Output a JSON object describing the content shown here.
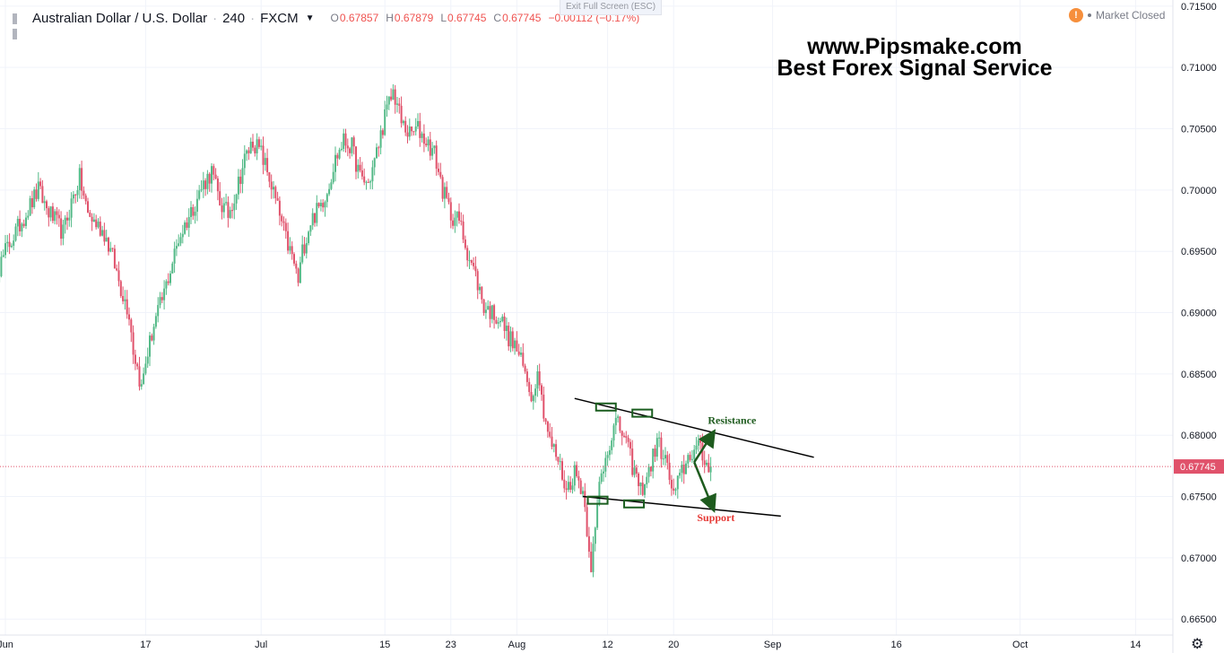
{
  "header": {
    "symbol_title": "Australian Dollar / U.S. Dollar",
    "separator": "·",
    "interval": "240",
    "exchange": "FXCM",
    "ohlc": [
      {
        "key": "O",
        "value": "0.67857"
      },
      {
        "key": "H",
        "value": "0.67879"
      },
      {
        "key": "L",
        "value": "0.67745"
      },
      {
        "key": "C",
        "value": "0.67745"
      }
    ],
    "change": "−0.00112 (−0.17%)",
    "exit_fullscreen": "Exit Full Screen (ESC)",
    "market_status": "Market Closed",
    "market_icon": "!"
  },
  "watermark": {
    "line1": "www.Pipsmake.com",
    "line2": "Best Forex Signal Service"
  },
  "colors": {
    "up": "#53b987",
    "down": "#e0526b",
    "grid": "#f0f3fa",
    "price_line": "#e0526b",
    "annotation_green": "#1e5b1e",
    "annotation_red": "#e53935"
  },
  "icons": {
    "symbol": "tradingview-bars-icon",
    "settings": "gear-icon"
  },
  "chart_data": {
    "type": "candlestick",
    "xlabel": "",
    "ylabel": "",
    "ylim": [
      0.6637,
      0.7155
    ],
    "y_ticks": [
      "0.71500",
      "0.71000",
      "0.70500",
      "0.70000",
      "0.69500",
      "0.69000",
      "0.68500",
      "0.68000",
      "0.67500",
      "0.67000",
      "0.66500"
    ],
    "y_tick_values": [
      0.715,
      0.71,
      0.705,
      0.7,
      0.695,
      0.69,
      0.685,
      0.68,
      0.675,
      0.67,
      0.665
    ],
    "x_ticks": [
      "Jun",
      "17",
      "Jul",
      "15",
      "23",
      "Aug",
      "12",
      "20",
      "Sep",
      "16",
      "Oct",
      "14"
    ],
    "x_tick_days": [
      0,
      17,
      31,
      46,
      54,
      62,
      73,
      81,
      93,
      108,
      123,
      137
    ],
    "last_price": 0.67745,
    "last_price_label": "0.67745",
    "close_path": [
      [
        -2,
        0.6915
      ],
      [
        0,
        0.695
      ],
      [
        2,
        0.6975
      ],
      [
        4,
        0.7
      ],
      [
        5,
        0.6985
      ],
      [
        7,
        0.6965
      ],
      [
        8,
        0.699
      ],
      [
        9,
        0.701
      ],
      [
        10,
        0.698
      ],
      [
        12,
        0.6965
      ],
      [
        13,
        0.6945
      ],
      [
        14,
        0.692
      ],
      [
        15,
        0.69
      ],
      [
        15.5,
        0.687
      ],
      [
        16,
        0.6855
      ],
      [
        16.5,
        0.6838
      ],
      [
        17,
        0.686
      ],
      [
        18,
        0.689
      ],
      [
        19,
        0.691
      ],
      [
        20,
        0.6935
      ],
      [
        21,
        0.696
      ],
      [
        22,
        0.6975
      ],
      [
        23,
        0.699
      ],
      [
        24,
        0.7005
      ],
      [
        25,
        0.7015
      ],
      [
        26,
        0.699
      ],
      [
        27,
        0.698
      ],
      [
        28,
        0.7
      ],
      [
        29,
        0.7025
      ],
      [
        30,
        0.704
      ],
      [
        31,
        0.703
      ],
      [
        32,
        0.701
      ],
      [
        33,
        0.6985
      ],
      [
        34,
        0.696
      ],
      [
        35,
        0.694
      ],
      [
        35.5,
        0.6925
      ],
      [
        36,
        0.695
      ],
      [
        37,
        0.6975
      ],
      [
        38,
        0.6985
      ],
      [
        39,
        0.7
      ],
      [
        40,
        0.7025
      ],
      [
        41,
        0.704
      ],
      [
        42,
        0.7035
      ],
      [
        43,
        0.701
      ],
      [
        44,
        0.7005
      ],
      [
        45,
        0.703
      ],
      [
        46,
        0.706
      ],
      [
        47,
        0.708
      ],
      [
        47.5,
        0.707
      ],
      [
        48,
        0.7055
      ],
      [
        49,
        0.7045
      ],
      [
        50,
        0.705
      ],
      [
        51,
        0.704
      ],
      [
        52,
        0.703
      ],
      [
        53,
        0.7
      ],
      [
        54,
        0.698
      ],
      [
        55,
        0.6975
      ],
      [
        56,
        0.695
      ],
      [
        57,
        0.693
      ],
      [
        58,
        0.6905
      ],
      [
        59,
        0.69
      ],
      [
        60,
        0.6895
      ],
      [
        61,
        0.688
      ],
      [
        62,
        0.687
      ],
      [
        63,
        0.685
      ],
      [
        64,
        0.683
      ],
      [
        64.5,
        0.686
      ],
      [
        65,
        0.683
      ],
      [
        66,
        0.6795
      ],
      [
        67,
        0.678
      ],
      [
        68,
        0.6755
      ],
      [
        69,
        0.677
      ],
      [
        70,
        0.6755
      ],
      [
        71,
        0.6695
      ],
      [
        71.5,
        0.672
      ],
      [
        72,
        0.676
      ],
      [
        73,
        0.679
      ],
      [
        74,
        0.681
      ],
      [
        75,
        0.68
      ],
      [
        76,
        0.6775
      ],
      [
        77,
        0.6755
      ],
      [
        78,
        0.677
      ],
      [
        79,
        0.6795
      ],
      [
        80,
        0.678
      ],
      [
        81,
        0.675
      ],
      [
        82,
        0.677
      ],
      [
        83,
        0.6785
      ],
      [
        84,
        0.679
      ],
      [
        85,
        0.6775
      ],
      [
        85.7,
        0.678
      ]
    ],
    "annotations": {
      "resistance_line": [
        [
          69,
          0.683
        ],
        [
          98,
          0.6782
        ]
      ],
      "support_line": [
        [
          70,
          0.675
        ],
        [
          94,
          0.6734
        ]
      ],
      "resistance_boxes": [
        [
          72.8,
          0.6823
        ],
        [
          77.2,
          0.6818
        ]
      ],
      "support_boxes": [
        [
          71.8,
          0.6747
        ],
        [
          76.2,
          0.6744
        ]
      ],
      "resistance_label": "Resistance",
      "support_label": "Support",
      "arrow_origin": [
        83.5,
        0.6778
      ],
      "arrow_up_to": [
        85.8,
        0.6802
      ],
      "arrow_down_to": [
        85.8,
        0.674
      ]
    }
  }
}
